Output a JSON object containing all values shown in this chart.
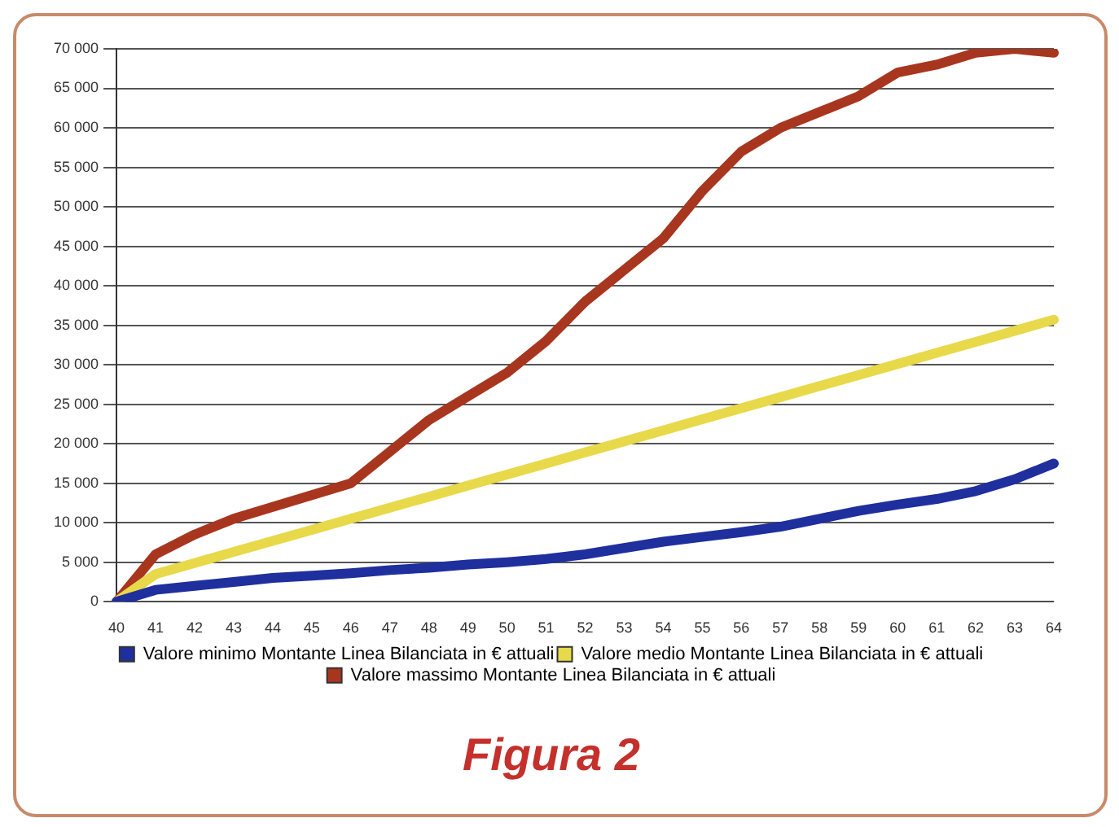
{
  "chart_data": {
    "type": "line",
    "title": "Figura 2",
    "categories": [
      "40",
      "41",
      "42",
      "43",
      "44",
      "45",
      "46",
      "47",
      "48",
      "49",
      "50",
      "51",
      "52",
      "53",
      "54",
      "55",
      "56",
      "57",
      "58",
      "59",
      "60",
      "61",
      "62",
      "63",
      "64"
    ],
    "series": [
      {
        "name": "Valore minimo Montante Linea Bilanciata in € attuali",
        "color": "#1f2f9e",
        "values": [
          0,
          1500,
          2000,
          2500,
          3000,
          3300,
          3600,
          4000,
          4300,
          4700,
          5000,
          5400,
          6000,
          6800,
          7600,
          8200,
          8800,
          9500,
          10500,
          11500,
          12300,
          13000,
          14000,
          15500,
          17500
        ]
      },
      {
        "name": "Valore medio Montante Linea Bilanciata in € attuali",
        "color": "#e8d94a",
        "values": [
          0,
          3500,
          4900,
          6300,
          7700,
          9100,
          10500,
          11900,
          13300,
          14700,
          16100,
          17500,
          18900,
          20300,
          21700,
          23100,
          24500,
          25900,
          27300,
          28700,
          30100,
          31500,
          32900,
          34300,
          35700
        ]
      },
      {
        "name": "Valore massimo Montante Linea Bilanciata in € attuali",
        "color": "#a8361f",
        "values": [
          0,
          6000,
          8500,
          10500,
          12000,
          13500,
          15000,
          19000,
          23000,
          26000,
          29000,
          33000,
          38000,
          42000,
          46000,
          52000,
          57000,
          60000,
          62000,
          64000,
          67000,
          68000,
          69500,
          70000,
          69500
        ]
      }
    ],
    "ylim": [
      0,
      70000
    ],
    "yticks": [
      {
        "value": 0,
        "label": "0"
      },
      {
        "value": 5000,
        "label": "5 000"
      },
      {
        "value": 10000,
        "label": "10 000"
      },
      {
        "value": 15000,
        "label": "15 000"
      },
      {
        "value": 20000,
        "label": "20 000"
      },
      {
        "value": 25000,
        "label": "25 000"
      },
      {
        "value": 30000,
        "label": "30 000"
      },
      {
        "value": 35000,
        "label": "35 000"
      },
      {
        "value": 40000,
        "label": "40 000"
      },
      {
        "value": 45000,
        "label": "45 000"
      },
      {
        "value": 50000,
        "label": "50 000"
      },
      {
        "value": 55000,
        "label": "55 000"
      },
      {
        "value": 60000,
        "label": "60 000"
      },
      {
        "value": 65000,
        "label": "65 000"
      },
      {
        "value": 70000,
        "label": "70 000"
      }
    ],
    "grid": "y",
    "legend": "bottom",
    "marker": "none",
    "line_style": "solid"
  }
}
